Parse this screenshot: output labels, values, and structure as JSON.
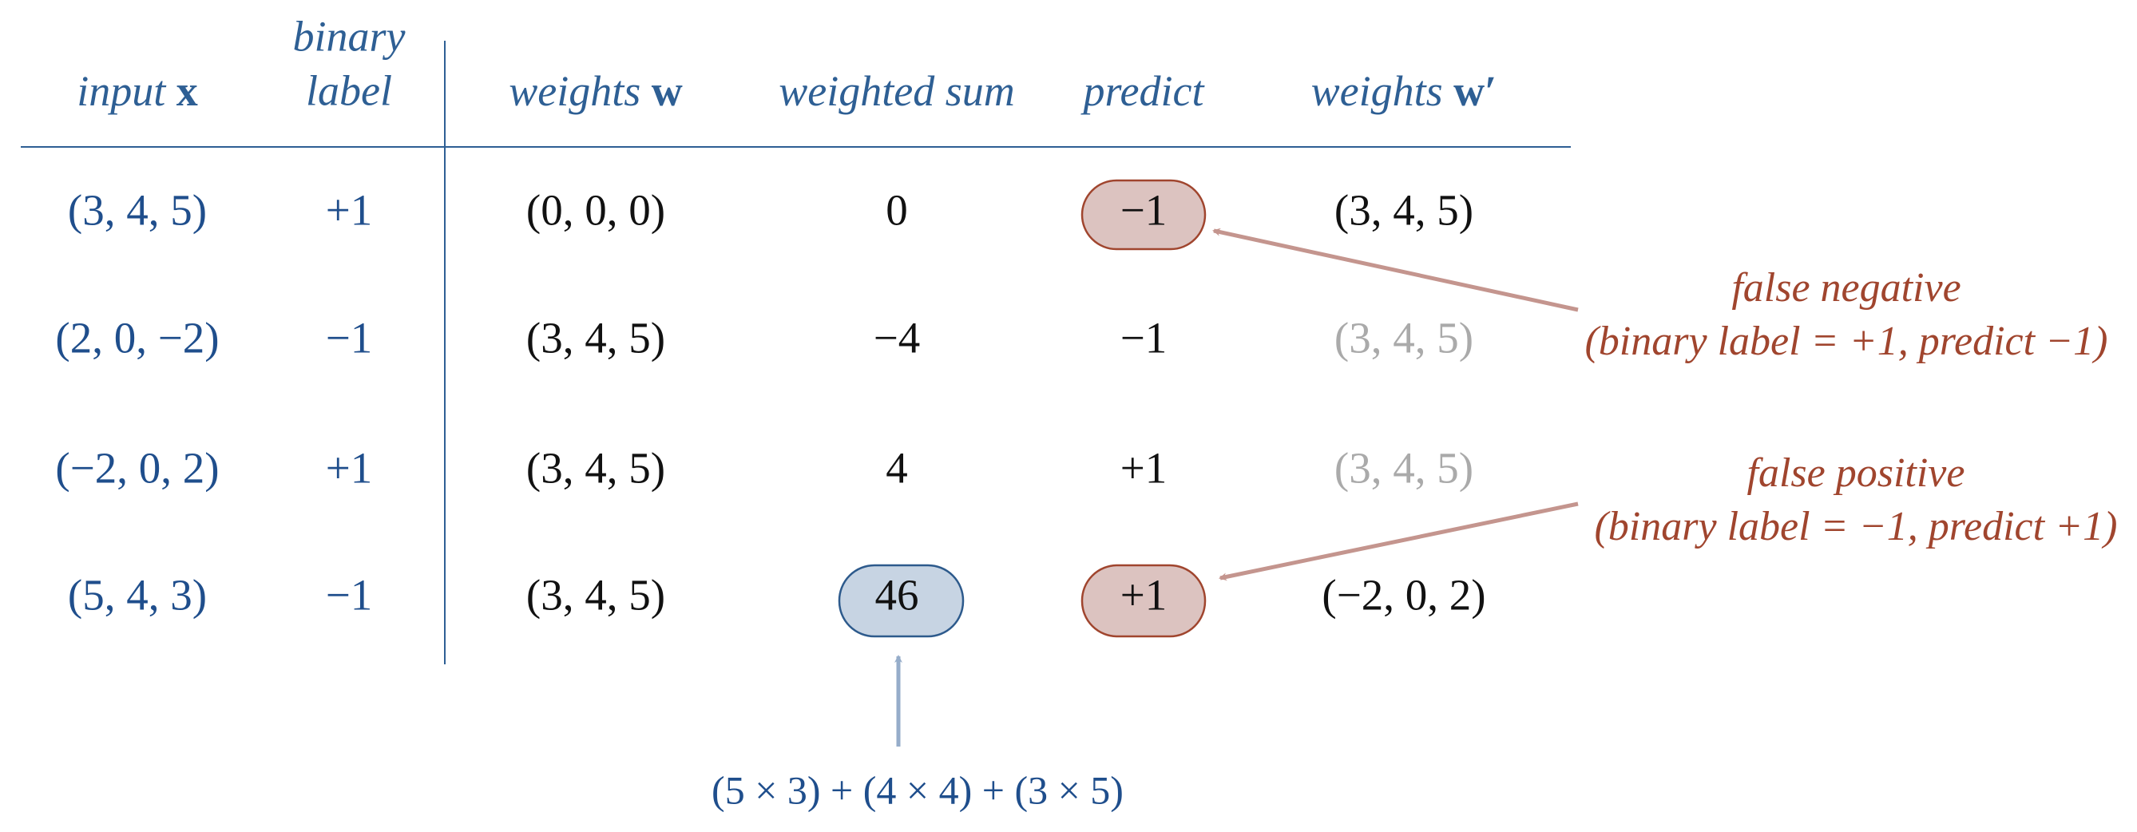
{
  "header": {
    "columns": [
      {
        "text": "input",
        "symbol": "x"
      },
      {
        "lines": [
          "binary",
          "label"
        ]
      },
      {
        "text": "weights",
        "symbol": "w"
      },
      {
        "text": "weighted sum"
      },
      {
        "text": "predict"
      },
      {
        "text": "weights",
        "symbol": "w′"
      }
    ]
  },
  "table": {
    "rows": [
      [
        "(3, 4, 5)",
        "+1",
        "(0, 0, 0)",
        "0",
        "−1",
        "(3, 4, 5)"
      ],
      [
        "(2, 0, −2)",
        "−1",
        "(3, 4, 5)",
        "−4",
        "−1",
        "(3, 4, 5)"
      ],
      [
        "(−2, 0, 2)",
        "+1",
        "(3, 4, 5)",
        "4",
        "+1",
        "(3, 4, 5)"
      ],
      [
        "(5, 4, 3)",
        "−1",
        "(3, 4, 5)",
        "46",
        "+1",
        "(−2, 0, 2)"
      ]
    ]
  },
  "annotations": {
    "false_negative": {
      "title": "false negative",
      "detail": "(binary label = +1, predict −1)"
    },
    "false_positive": {
      "title": "false positive",
      "detail": "(binary label = −1, predict +1)"
    },
    "sum_formula": "(5 × 3) + (4 × 4) + (3 × 5)"
  }
}
